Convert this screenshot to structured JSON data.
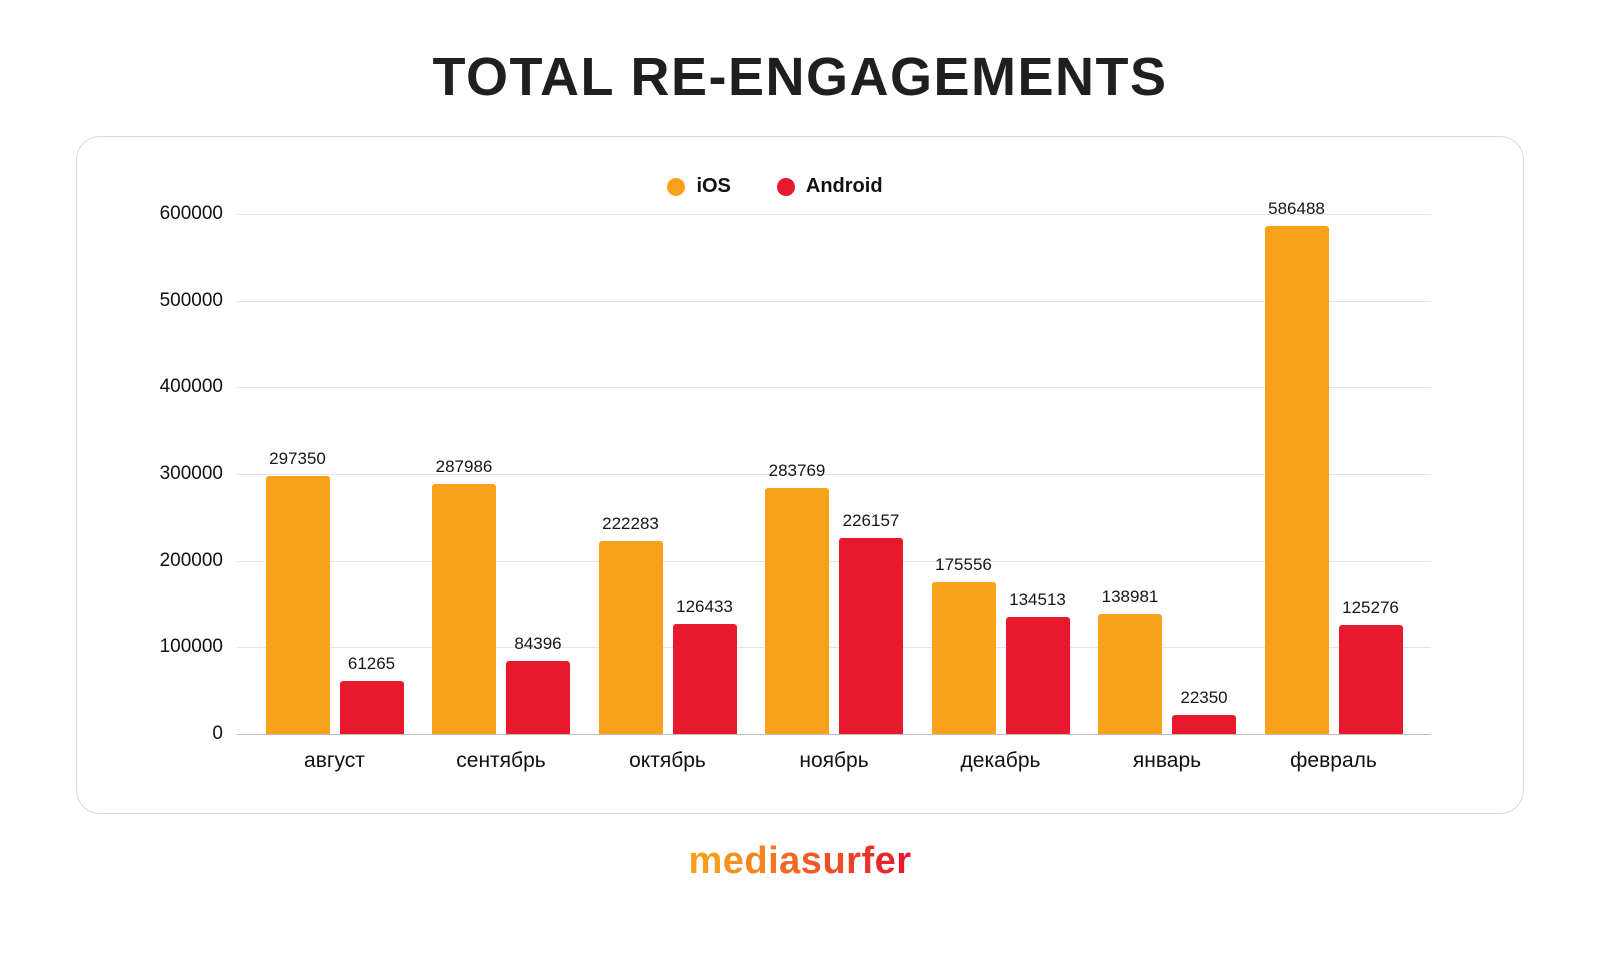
{
  "page": {
    "title": "TOTAL RE-ENGAGEMENTS",
    "brand": "mediasurfer"
  },
  "colors": {
    "ios": "#F9A11B",
    "android": "#E8192C",
    "gridline": "#E4E4E4",
    "axis_line": "#BDBDBD",
    "text": "#141414"
  },
  "chart_data": {
    "type": "bar",
    "title": "TOTAL RE-ENGAGEMENTS",
    "categories": [
      "август",
      "сентябрь",
      "октябрь",
      "ноябрь",
      "декабрь",
      "январь",
      "февраль"
    ],
    "series": [
      {
        "name": "iOS",
        "color": "#F9A11B",
        "values": [
          297350,
          287986,
          222283,
          283769,
          175556,
          138981,
          586488
        ]
      },
      {
        "name": "Android",
        "color": "#E8192C",
        "values": [
          61265,
          84396,
          126433,
          226157,
          134513,
          22350,
          125276
        ]
      }
    ],
    "ylim": [
      0,
      600000
    ],
    "yticks": [
      0,
      100000,
      200000,
      300000,
      400000,
      500000,
      600000
    ],
    "grid": true,
    "legend_position": "top",
    "bar_labels": true,
    "xlabel": "",
    "ylabel": ""
  }
}
